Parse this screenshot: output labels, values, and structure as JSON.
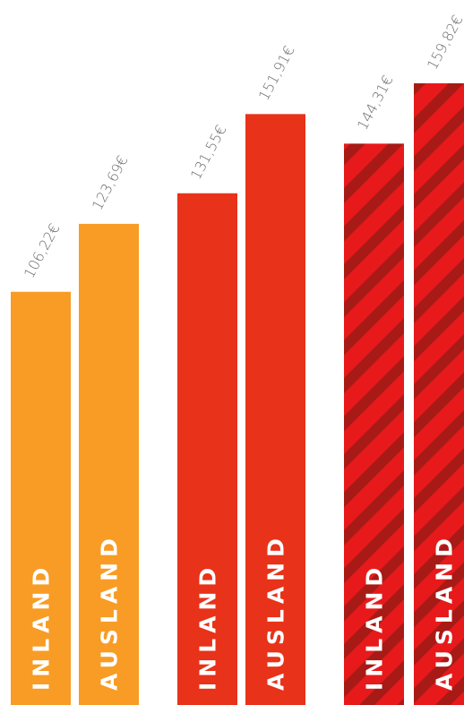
{
  "chart_data": {
    "type": "bar",
    "title": "",
    "xlabel": "",
    "ylabel": "",
    "ylim": [
      0,
      160
    ],
    "grid": false,
    "legend": "none",
    "bars": [
      {
        "category": "INLAND",
        "value": 106.22,
        "value_label": "106,22€",
        "color": "#f89c25",
        "pattern": "solid"
      },
      {
        "category": "AUSLAND",
        "value": 123.69,
        "value_label": "123,69€",
        "color": "#f89c25",
        "pattern": "solid"
      },
      {
        "category": "INLAND",
        "value": 131.55,
        "value_label": "131,55€",
        "color": "#e83219",
        "pattern": "solid"
      },
      {
        "category": "AUSLAND",
        "value": 151.91,
        "value_label": "151,91€",
        "color": "#e83219",
        "pattern": "solid"
      },
      {
        "category": "INLAND",
        "value": 144.31,
        "value_label": "144,31€",
        "color": "#e8191b",
        "stripe_color": "#a81a16",
        "pattern": "striped"
      },
      {
        "category": "AUSLAND",
        "value": 159.82,
        "value_label": "159,82€",
        "color": "#e8191b",
        "stripe_color": "#a81a16",
        "pattern": "striped"
      }
    ]
  }
}
